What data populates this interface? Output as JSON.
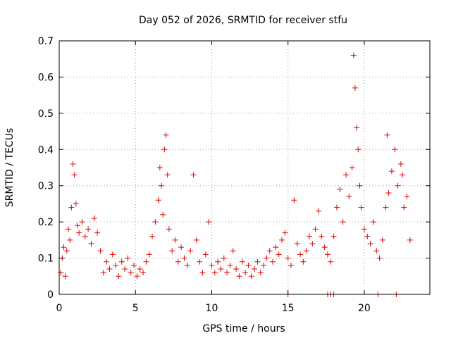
{
  "chart_data": {
    "type": "scatter",
    "title": "Day 052 of 2026, SRMTID for receiver stfu",
    "xlabel": "GPS time / hours",
    "ylabel": "SRMTID / TECUs",
    "xlim": [
      0,
      24.3
    ],
    "ylim": [
      0,
      0.7
    ],
    "x_ticks": [
      0,
      5,
      10,
      15,
      20
    ],
    "x_tick_labels": [
      "0",
      "5",
      "10",
      "15",
      "20"
    ],
    "y_ticks": [
      0,
      0.1,
      0.2,
      0.3,
      0.4,
      0.5,
      0.6,
      0.7
    ],
    "y_tick_labels": [
      "0",
      "0.1",
      "0.2",
      "0.3",
      "0.4",
      "0.5",
      "0.6",
      "0.7"
    ],
    "grid": true,
    "marker": "plus",
    "colors": {
      "series": "#e00000",
      "grid": "#a0a0a0"
    },
    "series": [
      {
        "name": "SRMTID",
        "points": [
          [
            0.1,
            0.06
          ],
          [
            0.2,
            0.1
          ],
          [
            0.3,
            0.13
          ],
          [
            0.4,
            0.05
          ],
          [
            0.5,
            0.12
          ],
          [
            0.6,
            0.18
          ],
          [
            0.7,
            0.15
          ],
          [
            0.8,
            0.24
          ],
          [
            0.9,
            0.36
          ],
          [
            1.0,
            0.33
          ],
          [
            1.1,
            0.25
          ],
          [
            1.2,
            0.19
          ],
          [
            1.3,
            0.17
          ],
          [
            1.5,
            0.2
          ],
          [
            1.7,
            0.16
          ],
          [
            1.9,
            0.18
          ],
          [
            2.1,
            0.14
          ],
          [
            2.3,
            0.21
          ],
          [
            2.5,
            0.17
          ],
          [
            2.7,
            0.12
          ],
          [
            2.9,
            0.06
          ],
          [
            3.1,
            0.09
          ],
          [
            3.3,
            0.07
          ],
          [
            3.5,
            0.11
          ],
          [
            3.7,
            0.08
          ],
          [
            3.9,
            0.05
          ],
          [
            4.1,
            0.09
          ],
          [
            4.3,
            0.07
          ],
          [
            4.5,
            0.1
          ],
          [
            4.7,
            0.06
          ],
          [
            4.9,
            0.08
          ],
          [
            5.1,
            0.05
          ],
          [
            5.3,
            0.07
          ],
          [
            5.5,
            0.06
          ],
          [
            5.7,
            0.09
          ],
          [
            5.9,
            0.11
          ],
          [
            6.1,
            0.16
          ],
          [
            6.3,
            0.2
          ],
          [
            6.5,
            0.26
          ],
          [
            6.6,
            0.35
          ],
          [
            6.7,
            0.3
          ],
          [
            6.8,
            0.22
          ],
          [
            6.9,
            0.4
          ],
          [
            7.0,
            0.44
          ],
          [
            7.1,
            0.33
          ],
          [
            7.2,
            0.18
          ],
          [
            7.4,
            0.12
          ],
          [
            7.6,
            0.15
          ],
          [
            7.8,
            0.09
          ],
          [
            8.0,
            0.13
          ],
          [
            8.2,
            0.1
          ],
          [
            8.4,
            0.08
          ],
          [
            8.6,
            0.12
          ],
          [
            8.8,
            0.33
          ],
          [
            9.0,
            0.15
          ],
          [
            9.2,
            0.09
          ],
          [
            9.4,
            0.06
          ],
          [
            9.6,
            0.11
          ],
          [
            9.8,
            0.2
          ],
          [
            10.0,
            0.08
          ],
          [
            10.2,
            0.06
          ],
          [
            10.4,
            0.09
          ],
          [
            10.6,
            0.07
          ],
          [
            10.8,
            0.1
          ],
          [
            11.0,
            0.06
          ],
          [
            11.2,
            0.08
          ],
          [
            11.4,
            0.12
          ],
          [
            11.6,
            0.07
          ],
          [
            11.8,
            0.05
          ],
          [
            12.0,
            0.09
          ],
          [
            12.2,
            0.06
          ],
          [
            12.4,
            0.08
          ],
          [
            12.6,
            0.05
          ],
          [
            12.8,
            0.07
          ],
          [
            13.0,
            0.09
          ],
          [
            13.2,
            0.06
          ],
          [
            13.4,
            0.08
          ],
          [
            13.6,
            0.1
          ],
          [
            13.8,
            0.12
          ],
          [
            14.0,
            0.09
          ],
          [
            14.2,
            0.13
          ],
          [
            14.4,
            0.11
          ],
          [
            14.6,
            0.15
          ],
          [
            14.8,
            0.17
          ],
          [
            15.0,
            0.1
          ],
          [
            15.2,
            0.08
          ],
          [
            15.4,
            0.26
          ],
          [
            15.6,
            0.14
          ],
          [
            15.8,
            0.11
          ],
          [
            16.0,
            0.09
          ],
          [
            16.2,
            0.12
          ],
          [
            16.4,
            0.16
          ],
          [
            16.6,
            0.14
          ],
          [
            16.8,
            0.18
          ],
          [
            17.0,
            0.23
          ],
          [
            17.2,
            0.16
          ],
          [
            17.4,
            0.13
          ],
          [
            17.6,
            0.11
          ],
          [
            17.8,
            0.09
          ],
          [
            18.0,
            0.16
          ],
          [
            18.2,
            0.24
          ],
          [
            18.4,
            0.29
          ],
          [
            18.6,
            0.2
          ],
          [
            18.8,
            0.33
          ],
          [
            19.0,
            0.27
          ],
          [
            19.2,
            0.35
          ],
          [
            19.3,
            0.66
          ],
          [
            19.4,
            0.57
          ],
          [
            19.5,
            0.46
          ],
          [
            19.6,
            0.4
          ],
          [
            19.7,
            0.3
          ],
          [
            19.8,
            0.24
          ],
          [
            20.0,
            0.18
          ],
          [
            20.2,
            0.16
          ],
          [
            20.4,
            0.14
          ],
          [
            20.6,
            0.2
          ],
          [
            20.8,
            0.12
          ],
          [
            21.0,
            0.1
          ],
          [
            21.2,
            0.15
          ],
          [
            21.4,
            0.24
          ],
          [
            21.5,
            0.44
          ],
          [
            21.6,
            0.28
          ],
          [
            21.8,
            0.34
          ],
          [
            22.0,
            0.4
          ],
          [
            22.2,
            0.3
          ],
          [
            22.4,
            0.36
          ],
          [
            22.5,
            0.33
          ],
          [
            22.6,
            0.24
          ],
          [
            22.8,
            0.27
          ],
          [
            23.0,
            0.15
          ],
          [
            15.0,
            0.0
          ],
          [
            17.6,
            0.0
          ],
          [
            17.8,
            0.0
          ],
          [
            18.0,
            0.0
          ],
          [
            20.9,
            0.0
          ],
          [
            22.1,
            0.0
          ]
        ]
      }
    ]
  }
}
